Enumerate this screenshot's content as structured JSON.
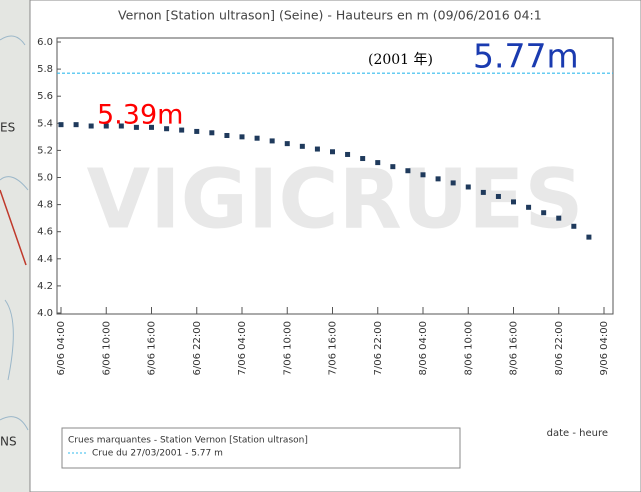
{
  "map_labels": [
    "ES",
    "NS"
  ],
  "chart_data": {
    "type": "scatter",
    "title": "Vernon [Station ultrason] (Seine) - Hauteurs en m (09/06/2016 04:1",
    "watermark": "VIGICRUES",
    "x_label": "date - heure",
    "x": [
      "6/06 04:00",
      "6/06 06:00",
      "6/06 08:00",
      "6/06 10:00",
      "6/06 12:00",
      "6/06 14:00",
      "6/06 16:00",
      "6/06 18:00",
      "6/06 20:00",
      "6/06 22:00",
      "7/06 00:00",
      "7/06 02:00",
      "7/06 04:00",
      "7/06 06:00",
      "7/06 08:00",
      "7/06 10:00",
      "7/06 12:00",
      "7/06 14:00",
      "7/06 16:00",
      "7/06 18:00",
      "7/06 20:00",
      "7/06 22:00",
      "8/06 00:00",
      "8/06 02:00",
      "8/06 04:00",
      "8/06 06:00",
      "8/06 08:00",
      "8/06 10:00",
      "8/06 12:00",
      "8/06 14:00",
      "8/06 16:00",
      "8/06 18:00",
      "8/06 20:00",
      "8/06 22:00",
      "9/06 00:00",
      "9/06 02:00"
    ],
    "series": [
      {
        "color": "#1f3a5c",
        "values": [
          5.39,
          5.39,
          5.38,
          5.38,
          5.38,
          5.37,
          5.37,
          5.36,
          5.35,
          5.34,
          5.33,
          5.31,
          5.3,
          5.29,
          5.27,
          5.25,
          5.23,
          5.21,
          5.19,
          5.17,
          5.14,
          5.11,
          5.08,
          5.05,
          5.02,
          4.99,
          4.96,
          4.93,
          4.89,
          4.86,
          4.82,
          4.78,
          4.74,
          4.7,
          4.64,
          4.56
        ]
      }
    ],
    "xticks": [
      "6/06 04:00",
      "6/06 10:00",
      "6/06 16:00",
      "6/06 22:00",
      "7/06 04:00",
      "7/06 10:00",
      "7/06 16:00",
      "7/06 22:00",
      "8/06 04:00",
      "8/06 10:00",
      "8/06 16:00",
      "8/06 22:00",
      "9/06 04:00"
    ],
    "ylim": [
      4,
      6
    ],
    "yticks": [
      {
        "value": 4,
        "label": "4.0"
      },
      {
        "value": 4.2,
        "label": "4.2"
      },
      {
        "value": 4.4,
        "label": "4.4"
      },
      {
        "value": 4.6,
        "label": "4.6"
      },
      {
        "value": 4.8,
        "label": "4.8"
      },
      {
        "value": 5,
        "label": "5.0"
      },
      {
        "value": 5.2,
        "label": "5.2"
      },
      {
        "value": 5.4,
        "label": "5.4"
      },
      {
        "value": 5.6,
        "label": "5.6"
      },
      {
        "value": 5.8,
        "label": "5.8"
      },
      {
        "value": 6,
        "label": "6.0"
      }
    ],
    "reference": {
      "value": 5.77,
      "color": "#33bbee"
    },
    "annotations": [
      {
        "text": "5.39m",
        "color": "#ff0000"
      },
      {
        "text": "(2001 年)",
        "color": "#000000"
      },
      {
        "text": "5.77m",
        "color": "#1a3bb0"
      }
    ],
    "legend": {
      "title": "Crues marquantes - Station Vernon [Station ultrason]",
      "entry": "Crue du 27/03/2001 - 5.77 m"
    }
  }
}
